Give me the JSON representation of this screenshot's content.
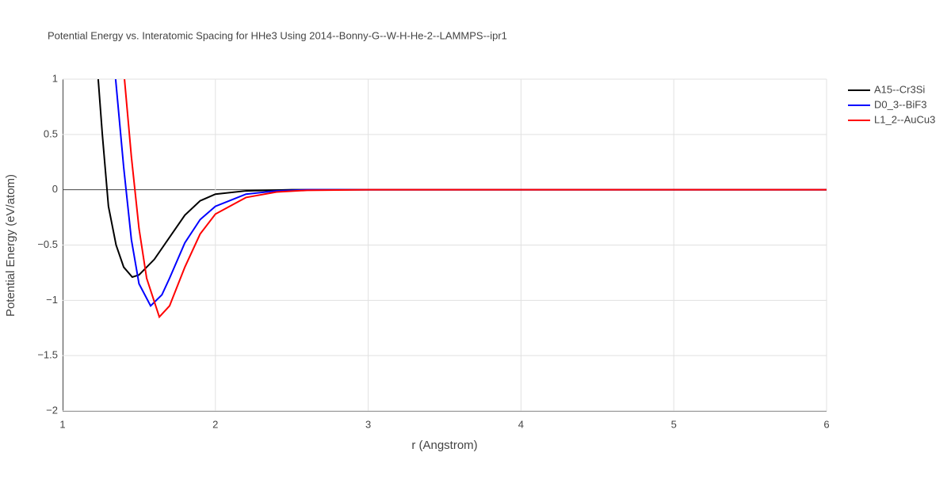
{
  "chart_data": {
    "type": "line",
    "title": "Potential Energy vs. Interatomic Spacing for HHe3 Using 2014--Bonny-G--W-H-He-2--LAMMPS--ipr1",
    "xlabel": "r (Angstrom)",
    "ylabel": "Potential Energy (eV/atom)",
    "xlim": [
      1,
      6
    ],
    "xticks": [
      1,
      2,
      3,
      4,
      5,
      6
    ],
    "ylim": [
      -2,
      1
    ],
    "yticks": [
      {
        "value": -2,
        "label": "−2"
      },
      {
        "value": -1.5,
        "label": "−1.5"
      },
      {
        "value": -1,
        "label": "−1"
      },
      {
        "value": -0.5,
        "label": "−0.5"
      },
      0,
      0.5,
      1
    ],
    "grid": true,
    "legend": "top-right",
    "series": [
      {
        "name": "A15--Cr3Si",
        "color": "#000000",
        "x": [
          1.233,
          1.26,
          1.3,
          1.35,
          1.4,
          1.456,
          1.5,
          1.6,
          1.7,
          1.8,
          1.9,
          2.0,
          2.2,
          2.5,
          3,
          4,
          5,
          6
        ],
        "values": [
          1,
          0.5,
          -0.15,
          -0.5,
          -0.7,
          -0.79,
          -0.77,
          -0.63,
          -0.43,
          -0.23,
          -0.1,
          -0.04,
          -0.01,
          0,
          0,
          0,
          0,
          0
        ]
      },
      {
        "name": "D0_3--BiF3",
        "color": "#0000ff",
        "x": [
          1.347,
          1.4,
          1.45,
          1.5,
          1.576,
          1.65,
          1.7,
          1.8,
          1.9,
          2.0,
          2.2,
          2.4,
          2.6,
          3,
          4,
          5,
          6
        ],
        "values": [
          1,
          0.2,
          -0.45,
          -0.85,
          -1.05,
          -0.95,
          -0.8,
          -0.48,
          -0.27,
          -0.15,
          -0.04,
          -0.01,
          0,
          0,
          0,
          0,
          0
        ]
      },
      {
        "name": "L1_2--AuCu3",
        "color": "#ff0000",
        "x": [
          1.405,
          1.45,
          1.5,
          1.55,
          1.633,
          1.7,
          1.8,
          1.9,
          2.0,
          2.2,
          2.4,
          2.6,
          3,
          4,
          5,
          6
        ],
        "values": [
          1,
          0.3,
          -0.35,
          -0.8,
          -1.15,
          -1.05,
          -0.7,
          -0.4,
          -0.22,
          -0.07,
          -0.02,
          -0.005,
          0,
          0,
          0,
          0
        ]
      }
    ]
  }
}
